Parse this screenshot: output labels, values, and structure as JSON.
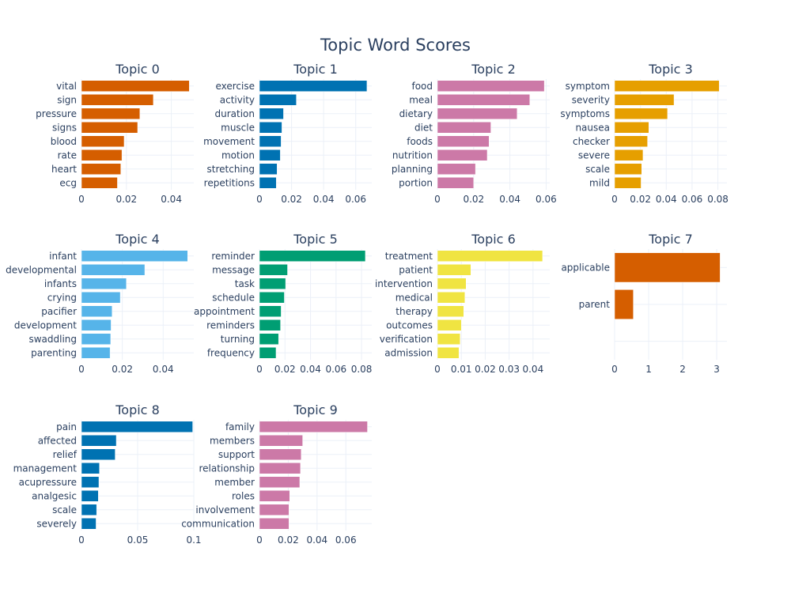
{
  "chart_data": {
    "type": "bar",
    "orientation": "horizontal",
    "title": "Topic Word Scores",
    "grid": true,
    "legend": "none",
    "subplots": [
      {
        "title": "Topic 0",
        "color": "#D55E00",
        "categories": [
          "vital",
          "sign",
          "pressure",
          "signs",
          "blood",
          "rate",
          "heart",
          "ecg"
        ],
        "values": [
          0.048,
          0.032,
          0.026,
          0.025,
          0.019,
          0.018,
          0.0175,
          0.016
        ],
        "xlim": [
          0,
          0.05
        ],
        "ticks": [
          0,
          0.02,
          0.04
        ],
        "tick_labels": [
          "0",
          "0.02",
          "0.04"
        ]
      },
      {
        "title": "Topic 1",
        "color": "#0072B2",
        "categories": [
          "exercise",
          "activity",
          "duration",
          "muscle",
          "movement",
          "motion",
          "stretching",
          "repetitions"
        ],
        "values": [
          0.067,
          0.023,
          0.015,
          0.014,
          0.0135,
          0.013,
          0.011,
          0.0105
        ],
        "xlim": [
          0,
          0.07
        ],
        "ticks": [
          0,
          0.02,
          0.04,
          0.06
        ],
        "tick_labels": [
          "0",
          "0.02",
          "0.04",
          "0.06"
        ]
      },
      {
        "title": "Topic 2",
        "color": "#CC79A7",
        "categories": [
          "food",
          "meal",
          "dietary",
          "diet",
          "foods",
          "nutrition",
          "planning",
          "portion"
        ],
        "values": [
          0.059,
          0.051,
          0.044,
          0.0295,
          0.0285,
          0.0275,
          0.021,
          0.02
        ],
        "xlim": [
          0,
          0.062
        ],
        "ticks": [
          0,
          0.02,
          0.04,
          0.06
        ],
        "tick_labels": [
          "0",
          "0.02",
          "0.04",
          "0.06"
        ]
      },
      {
        "title": "Topic 3",
        "color": "#E69F00",
        "categories": [
          "symptom",
          "severity",
          "symptoms",
          "nausea",
          "checker",
          "severe",
          "scale",
          "mild"
        ],
        "values": [
          0.081,
          0.046,
          0.041,
          0.0265,
          0.0255,
          0.022,
          0.021,
          0.0205
        ],
        "xlim": [
          0,
          0.087
        ],
        "ticks": [
          0,
          0.02,
          0.04,
          0.06,
          0.08
        ],
        "tick_labels": [
          "0",
          "0.02",
          "0.04",
          "0.06",
          "0.08"
        ]
      },
      {
        "title": "Topic 4",
        "color": "#56B4E9",
        "categories": [
          "infant",
          "developmental",
          "infants",
          "crying",
          "pacifier",
          "development",
          "swaddling",
          "parenting"
        ],
        "values": [
          0.052,
          0.031,
          0.022,
          0.019,
          0.015,
          0.0145,
          0.0143,
          0.014
        ],
        "xlim": [
          0,
          0.055
        ],
        "ticks": [
          0,
          0.02,
          0.04
        ],
        "tick_labels": [
          "0",
          "0.02",
          "0.04"
        ]
      },
      {
        "title": "Topic 5",
        "color": "#009E73",
        "categories": [
          "reminder",
          "message",
          "task",
          "schedule",
          "appointment",
          "reminders",
          "turning",
          "frequency"
        ],
        "values": [
          0.083,
          0.022,
          0.0205,
          0.0195,
          0.017,
          0.0165,
          0.015,
          0.013
        ],
        "xlim": [
          0,
          0.088
        ],
        "ticks": [
          0,
          0.02,
          0.04,
          0.06,
          0.08
        ],
        "tick_labels": [
          "0",
          "0.02",
          "0.04",
          "0.06",
          "0.08"
        ]
      },
      {
        "title": "Topic 6",
        "color": "#F0E442",
        "categories": [
          "treatment",
          "patient",
          "intervention",
          "medical",
          "therapy",
          "outcomes",
          "verification",
          "admission"
        ],
        "values": [
          0.044,
          0.014,
          0.012,
          0.0115,
          0.011,
          0.01,
          0.0095,
          0.009
        ],
        "xlim": [
          0,
          0.047
        ],
        "ticks": [
          0,
          0.01,
          0.02,
          0.03,
          0.04
        ],
        "tick_labels": [
          "0",
          "0.01",
          "0.02",
          "0.03",
          "0.04"
        ]
      },
      {
        "title": "Topic 7",
        "color": "#D55E00",
        "categories": [
          "applicable",
          "parent"
        ],
        "values": [
          3.1,
          0.55
        ],
        "xlim": [
          0,
          3.3
        ],
        "ticks": [
          0,
          1,
          2,
          3
        ],
        "tick_labels": [
          "0",
          "1",
          "2",
          "3"
        ],
        "slots": 3
      },
      {
        "title": "Topic 8",
        "color": "#0072B2",
        "categories": [
          "pain",
          "affected",
          "relief",
          "management",
          "acupressure",
          "analgesic",
          "scale",
          "severely"
        ],
        "values": [
          0.099,
          0.031,
          0.03,
          0.016,
          0.0155,
          0.015,
          0.0135,
          0.013
        ],
        "xlim": [
          0,
          0.1
        ],
        "ticks": [
          0,
          0.05,
          0.1
        ],
        "tick_labels": [
          "0",
          "0.05",
          "0.1"
        ]
      },
      {
        "title": "Topic 9",
        "color": "#CC79A7",
        "categories": [
          "family",
          "members",
          "support",
          "relationship",
          "member",
          "roles",
          "involvement",
          "communication"
        ],
        "values": [
          0.075,
          0.03,
          0.029,
          0.0285,
          0.028,
          0.021,
          0.0205,
          0.0205
        ],
        "xlim": [
          0,
          0.078
        ],
        "ticks": [
          0,
          0.02,
          0.04,
          0.06
        ],
        "tick_labels": [
          "0",
          "0.02",
          "0.04",
          "0.06"
        ]
      }
    ]
  }
}
